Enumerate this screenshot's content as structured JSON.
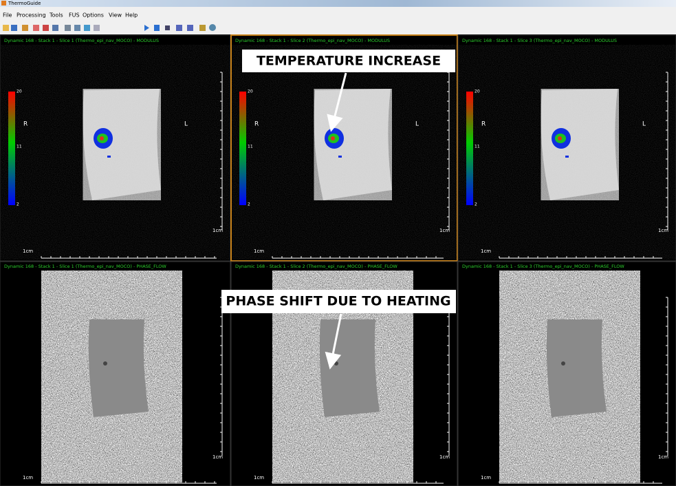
{
  "window": {
    "title": "ThermoGuide"
  },
  "menu": [
    "File",
    "Processing",
    "Tools",
    "FUS",
    "Options",
    "View",
    "Help"
  ],
  "top_panels": [
    {
      "header": "Dynamic 168 - Stack 1 - Slice 1 (Thermo_epi_nav_MOCO) - MODULUS",
      "colorbar": {
        "max": 20,
        "mid": 11,
        "min": 2
      },
      "left": "R",
      "right": "L",
      "scale_x": "1cm",
      "scale_y": "1cm"
    },
    {
      "header": "Dynamic 168 - Stack 1 - Slice 2 (Thermo_epi_nav_MOCO) - MODULUS",
      "colorbar": {
        "max": 20,
        "mid": 11,
        "min": 2
      },
      "left": "R",
      "right": "L",
      "scale_x": "1cm",
      "scale_y": "1cm"
    },
    {
      "header": "Dynamic 168 - Stack 1 - Slice 3 (Thermo_epi_nav_MOCO) - MODULUS",
      "colorbar": {
        "max": 20,
        "mid": 11,
        "min": 2
      },
      "left": "R",
      "right": "L",
      "scale_x": "1cm",
      "scale_y": "1cm"
    }
  ],
  "bottom_panels": [
    {
      "header": "Dynamic 168 - Stack 1 - Slice 1 (Thermo_epi_nav_MOCO) - PHASE_FLOW",
      "scale_x": "1cm",
      "scale_y": "1cm"
    },
    {
      "header": "Dynamic 168 - Stack 1 - Slice 2 (Thermo_epi_nav_MOCO) - PHASE_FLOW",
      "scale_x": "1cm",
      "scale_y": "1cm"
    },
    {
      "header": "Dynamic 168 - Stack 1 - Slice 3 (Thermo_epi_nav_MOCO) - PHASE_FLOW",
      "scale_x": "1cm",
      "scale_y": "1cm"
    }
  ],
  "annotations": {
    "temperature": "TEMPERATURE INCREASE",
    "phase": "PHASE SHIFT DUE TO HEATING"
  }
}
